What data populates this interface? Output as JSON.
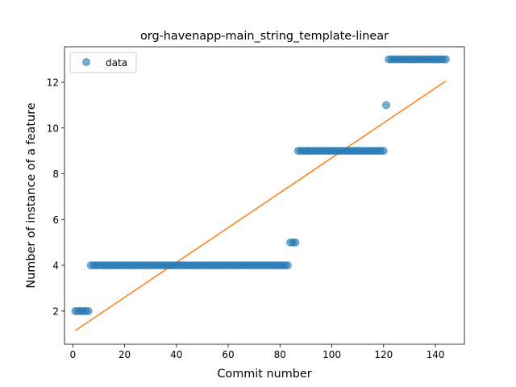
{
  "chart_data": {
    "type": "scatter",
    "title": "org-havenapp-main_string_template-linear",
    "xlabel": "Commit number",
    "ylabel": "Number of instance of a feature",
    "xlim": [
      -3.2,
      151.2
    ],
    "ylim": [
      0.55,
      13.55
    ],
    "xticks": [
      0,
      20,
      40,
      60,
      80,
      100,
      120,
      140
    ],
    "yticks": [
      2,
      4,
      6,
      8,
      10,
      12
    ],
    "legend": {
      "entries": [
        "data"
      ],
      "placement": "upper-left"
    },
    "colors": {
      "data": "#1f77b4",
      "fit": "#ff7f0e"
    },
    "series": [
      {
        "name": "data",
        "kind": "scatter",
        "x": [
          1,
          2,
          3,
          4,
          5,
          6,
          7,
          8,
          9,
          10,
          11,
          12,
          13,
          14,
          15,
          16,
          17,
          18,
          19,
          20,
          21,
          22,
          23,
          24,
          25,
          26,
          27,
          28,
          29,
          30,
          31,
          32,
          33,
          34,
          35,
          36,
          37,
          38,
          39,
          40,
          41,
          42,
          43,
          44,
          45,
          46,
          47,
          48,
          49,
          50,
          51,
          52,
          53,
          54,
          55,
          56,
          57,
          58,
          59,
          60,
          61,
          62,
          63,
          64,
          65,
          66,
          67,
          68,
          69,
          70,
          71,
          72,
          73,
          74,
          75,
          76,
          77,
          78,
          79,
          80,
          81,
          82,
          83,
          84,
          85,
          86,
          87,
          88,
          89,
          90,
          91,
          92,
          93,
          94,
          95,
          96,
          97,
          98,
          99,
          100,
          101,
          102,
          103,
          104,
          105,
          106,
          107,
          108,
          109,
          110,
          111,
          112,
          113,
          114,
          115,
          116,
          117,
          118,
          119,
          120,
          121,
          122,
          123,
          124,
          125,
          126,
          127,
          128,
          129,
          130,
          131,
          132,
          133,
          134,
          135,
          136,
          137,
          138,
          139,
          140,
          141,
          142,
          143,
          144
        ],
        "y": [
          2,
          2,
          2,
          2,
          2,
          2,
          4,
          4,
          4,
          4,
          4,
          4,
          4,
          4,
          4,
          4,
          4,
          4,
          4,
          4,
          4,
          4,
          4,
          4,
          4,
          4,
          4,
          4,
          4,
          4,
          4,
          4,
          4,
          4,
          4,
          4,
          4,
          4,
          4,
          4,
          4,
          4,
          4,
          4,
          4,
          4,
          4,
          4,
          4,
          4,
          4,
          4,
          4,
          4,
          4,
          4,
          4,
          4,
          4,
          4,
          4,
          4,
          4,
          4,
          4,
          4,
          4,
          4,
          4,
          4,
          4,
          4,
          4,
          4,
          4,
          4,
          4,
          4,
          4,
          4,
          4,
          4,
          4,
          5,
          5,
          5,
          9,
          9,
          9,
          9,
          9,
          9,
          9,
          9,
          9,
          9,
          9,
          9,
          9,
          9,
          9,
          9,
          9,
          9,
          9,
          9,
          9,
          9,
          9,
          9,
          9,
          9,
          9,
          9,
          9,
          9,
          9,
          9,
          9,
          9,
          11,
          13,
          13,
          13,
          13,
          13,
          13,
          13,
          13,
          13,
          13,
          13,
          13,
          13,
          13,
          13,
          13,
          13,
          13,
          13,
          13,
          13,
          13,
          13
        ]
      },
      {
        "name": "",
        "kind": "line",
        "x": [
          1,
          144
        ],
        "y": [
          1.15,
          12.05
        ]
      }
    ]
  }
}
